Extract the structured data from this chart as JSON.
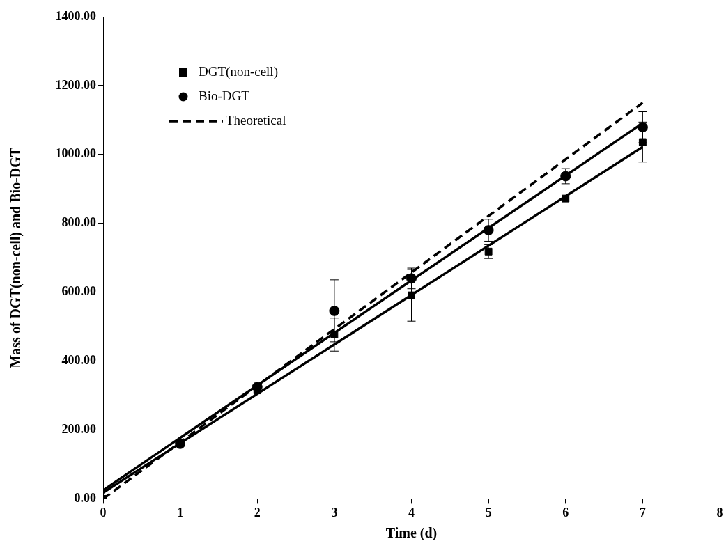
{
  "chart_data": {
    "type": "scatter",
    "xlabel": "Time (d)",
    "ylabel": "Mass of DGT(non-cell) and Bio-DGT",
    "xlim": [
      0,
      8
    ],
    "xticks": [
      0,
      1,
      2,
      3,
      4,
      5,
      6,
      7,
      8
    ],
    "ylim": [
      0,
      1400
    ],
    "yticks": [
      {
        "value": 0,
        "label": "0.00"
      },
      {
        "value": 200,
        "label": "200.00"
      },
      {
        "value": 400,
        "label": "400.00"
      },
      {
        "value": 600,
        "label": "600.00"
      },
      {
        "value": 800,
        "label": "800.00"
      },
      {
        "value": 1000,
        "label": "1000.00"
      },
      {
        "value": 1200,
        "label": "1200.00"
      },
      {
        "value": 1400,
        "label": "1400.00"
      }
    ],
    "grid": false,
    "legend": "top left",
    "series": [
      {
        "name": "DGT(non-cell)",
        "marker": "square",
        "color": "#000000",
        "x": [
          0,
          2,
          3,
          4,
          5,
          6,
          7
        ],
        "values": [
          0,
          315,
          477,
          591,
          718,
          872,
          1036
        ],
        "errors": [
          null,
          null,
          48,
          75,
          20,
          null,
          58
        ]
      },
      {
        "name": "Bio-DGT",
        "marker": "circle",
        "color": "#000000",
        "x": [
          1,
          2,
          3,
          4,
          5,
          6,
          7
        ],
        "values": [
          160,
          325,
          546,
          640,
          780,
          937,
          1079
        ],
        "errors": [
          null,
          null,
          90,
          30,
          32,
          22,
          45
        ]
      },
      {
        "name": "Theoretical",
        "type": "line",
        "line_style": "dashed",
        "marker": "none",
        "color": "#000000",
        "x": [
          0,
          7
        ],
        "values": [
          0,
          1150
        ]
      },
      {
        "type": "line",
        "line_style": "solid",
        "marker": "none",
        "color": "#000000",
        "x": [
          0,
          7
        ],
        "values": [
          18,
          1022
        ]
      },
      {
        "type": "line",
        "line_style": "solid",
        "marker": "none",
        "color": "#000000",
        "x": [
          0,
          7
        ],
        "values": [
          25,
          1091
        ]
      }
    ]
  }
}
